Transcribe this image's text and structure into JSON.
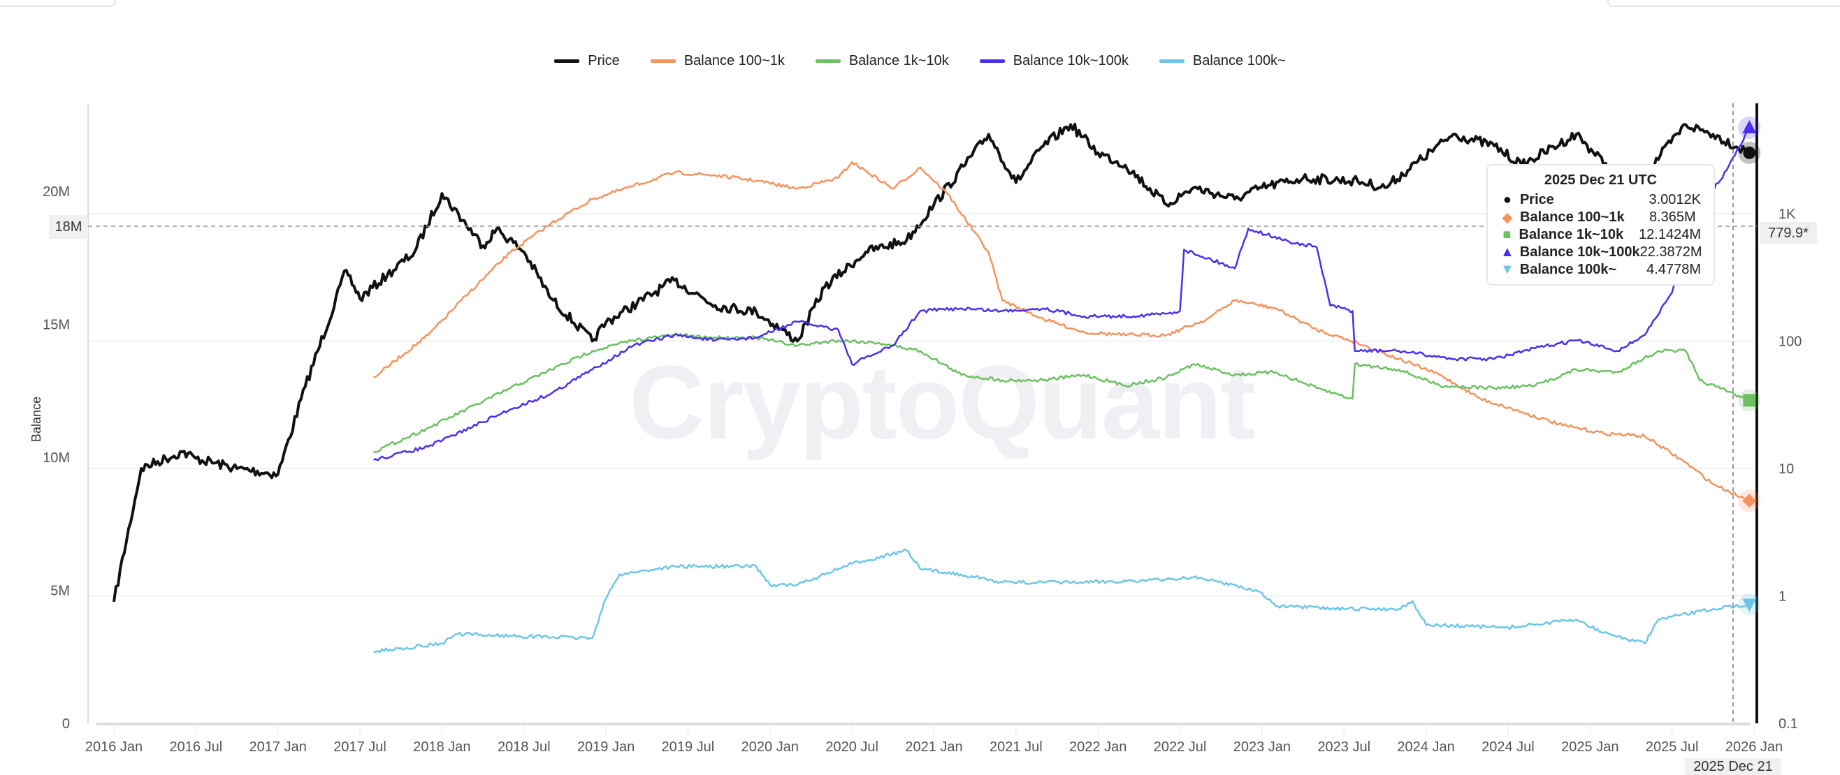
{
  "legend": [
    {
      "name": "Price",
      "color": "#111111"
    },
    {
      "name": "Balance 100~1k",
      "color": "#f4935d"
    },
    {
      "name": "Balance 1k~10k",
      "color": "#6cc062"
    },
    {
      "name": "Balance 10k~100k",
      "color": "#4a2ff0"
    },
    {
      "name": "Balance 100k~",
      "color": "#6ec6e6"
    }
  ],
  "watermark": "CryptoQuant",
  "tooltip": {
    "title": "2025 Dec 21 UTC",
    "rows": [
      {
        "marker": "●",
        "name": "Price",
        "value": "3.0012K",
        "color": "#111111"
      },
      {
        "marker": "◆",
        "name": "Balance 100~1k",
        "value": "8.365M",
        "color": "#f4935d"
      },
      {
        "marker": "■",
        "name": "Balance 1k~10k",
        "value": "12.1424M",
        "color": "#6cc062"
      },
      {
        "marker": "▲",
        "name": "Balance 10k~100k",
        "value": "22.3872M",
        "color": "#4a2ff0"
      },
      {
        "marker": "▼",
        "name": "Balance 100k~",
        "value": "4.4778M",
        "color": "#6ec6e6"
      }
    ]
  },
  "crosshair": {
    "left_value": "18M",
    "right_value": "779.9*",
    "date": "2025 Dec 21"
  },
  "chart_data": {
    "type": "line",
    "title": "",
    "xlabel": "",
    "ylabel": "Balance",
    "y_left": {
      "ticks": [
        "0",
        "5M",
        "10M",
        "15M",
        "20M"
      ],
      "tick_values": [
        0,
        5,
        10,
        15,
        20
      ],
      "unit": "M",
      "range": [
        0,
        23.5
      ]
    },
    "y_right": {
      "scale": "log",
      "ticks": [
        "0.1",
        "1",
        "10",
        "100",
        "1K"
      ],
      "tick_values": [
        0.1,
        1,
        10,
        100,
        1000
      ],
      "range": [
        0.1,
        8000
      ]
    },
    "x_ticks": [
      "2016 Jan",
      "2016 Jul",
      "2017 Jan",
      "2017 Jul",
      "2018 Jan",
      "2018 Jul",
      "2019 Jan",
      "2019 Jul",
      "2020 Jan",
      "2020 Jul",
      "2021 Jan",
      "2021 Jul",
      "2022 Jan",
      "2022 Jul",
      "2023 Jan",
      "2023 Jul",
      "2024 Jan",
      "2024 Jul",
      "2025 Jan",
      "2025 Jul",
      "2026 Jan"
    ],
    "grid": true,
    "legend_position": "top",
    "series": [
      {
        "name": "Price",
        "axis": "right",
        "color": "#111111",
        "points": [
          [
            "2016-01",
            0.9
          ],
          [
            "2016-03",
            10
          ],
          [
            "2016-06",
            13.5
          ],
          [
            "2016-07",
            12
          ],
          [
            "2016-10",
            10
          ],
          [
            "2017-01",
            9
          ],
          [
            "2017-03",
            44
          ],
          [
            "2017-06",
            360
          ],
          [
            "2017-07",
            215
          ],
          [
            "2017-09",
            330
          ],
          [
            "2017-11",
            500
          ],
          [
            "2018-01",
            1440
          ],
          [
            "2018-04",
            560
          ],
          [
            "2018-05",
            760
          ],
          [
            "2018-07",
            500
          ],
          [
            "2018-09",
            215
          ],
          [
            "2018-12",
            100
          ],
          [
            "2019-01",
            140
          ],
          [
            "2019-06",
            300
          ],
          [
            "2019-09",
            190
          ],
          [
            "2019-12",
            170
          ],
          [
            "2020-03",
            100
          ],
          [
            "2020-05",
            265
          ],
          [
            "2020-08",
            500
          ],
          [
            "2020-11",
            620
          ],
          [
            "2021-01",
            1180
          ],
          [
            "2021-05",
            4200
          ],
          [
            "2021-07",
            1750
          ],
          [
            "2021-09",
            3400
          ],
          [
            "2021-11",
            5000
          ],
          [
            "2022-01",
            3000
          ],
          [
            "2022-03",
            2400
          ],
          [
            "2022-06",
            1180
          ],
          [
            "2022-08",
            1600
          ],
          [
            "2022-11",
            1300
          ],
          [
            "2023-01",
            1600
          ],
          [
            "2023-04",
            1900
          ],
          [
            "2023-08",
            1800
          ],
          [
            "2023-10",
            1600
          ],
          [
            "2024-03",
            4200
          ],
          [
            "2024-06",
            3400
          ],
          [
            "2024-08",
            2400
          ],
          [
            "2024-12",
            4200
          ],
          [
            "2025-04",
            1500
          ],
          [
            "2025-08",
            5000
          ],
          [
            "2025-10",
            4200
          ],
          [
            "2025-12-21",
            3001.2
          ]
        ]
      },
      {
        "name": "Balance 100~1k",
        "axis": "left",
        "color": "#f4935d",
        "points": [
          [
            "2017-08",
            13.0
          ],
          [
            "2017-12",
            14.6
          ],
          [
            "2018-03",
            16.2
          ],
          [
            "2018-06",
            17.7
          ],
          [
            "2018-09",
            18.8
          ],
          [
            "2018-12",
            19.7
          ],
          [
            "2019-03",
            20.2
          ],
          [
            "2019-06",
            20.7
          ],
          [
            "2019-09",
            20.6
          ],
          [
            "2019-12",
            20.4
          ],
          [
            "2020-03",
            20.1
          ],
          [
            "2020-06",
            20.5
          ],
          [
            "2020-07",
            21.1
          ],
          [
            "2020-10",
            20.1
          ],
          [
            "2020-12",
            20.9
          ],
          [
            "2021-02",
            19.9
          ],
          [
            "2021-05",
            17.7
          ],
          [
            "2021-06",
            15.9
          ],
          [
            "2021-09",
            15.2
          ],
          [
            "2021-12",
            14.7
          ],
          [
            "2022-03",
            14.6
          ],
          [
            "2022-06",
            14.6
          ],
          [
            "2022-09",
            15.2
          ],
          [
            "2022-11",
            15.9
          ],
          [
            "2023-02",
            15.6
          ],
          [
            "2023-05",
            14.8
          ],
          [
            "2023-08",
            14.3
          ],
          [
            "2023-11",
            13.7
          ],
          [
            "2024-02",
            13.1
          ],
          [
            "2024-05",
            12.2
          ],
          [
            "2024-08",
            11.7
          ],
          [
            "2024-11",
            11.2
          ],
          [
            "2025-02",
            10.9
          ],
          [
            "2025-05",
            10.8
          ],
          [
            "2025-08",
            9.8
          ],
          [
            "2025-10",
            9.0
          ],
          [
            "2025-12-21",
            8.365
          ]
        ]
      },
      {
        "name": "Balance 1k~10k",
        "axis": "left",
        "color": "#6cc062",
        "points": [
          [
            "2017-08",
            10.2
          ],
          [
            "2017-12",
            11.1
          ],
          [
            "2018-06",
            12.6
          ],
          [
            "2018-09",
            13.3
          ],
          [
            "2018-12",
            14.0
          ],
          [
            "2019-03",
            14.4
          ],
          [
            "2019-06",
            14.6
          ],
          [
            "2019-09",
            14.5
          ],
          [
            "2019-12",
            14.5
          ],
          [
            "2020-03",
            14.2
          ],
          [
            "2020-06",
            14.4
          ],
          [
            "2020-09",
            14.3
          ],
          [
            "2020-12",
            14.0
          ],
          [
            "2021-03",
            13.1
          ],
          [
            "2021-06",
            12.9
          ],
          [
            "2021-09",
            12.9
          ],
          [
            "2021-12",
            13.1
          ],
          [
            "2022-03",
            12.7
          ],
          [
            "2022-06",
            13.0
          ],
          [
            "2022-08",
            13.5
          ],
          [
            "2022-11",
            13.1
          ],
          [
            "2023-02",
            13.2
          ],
          [
            "2023-05",
            12.6
          ],
          [
            "2023-07-20",
            12.2
          ],
          [
            "2023-07-25",
            13.5
          ],
          [
            "2023-11",
            13.3
          ],
          [
            "2024-02",
            12.7
          ],
          [
            "2024-06",
            12.6
          ],
          [
            "2024-09",
            12.7
          ],
          [
            "2024-12",
            13.3
          ],
          [
            "2025-03",
            13.2
          ],
          [
            "2025-06",
            14.0
          ],
          [
            "2025-08",
            14.0
          ],
          [
            "2025-09",
            12.9
          ],
          [
            "2025-12-21",
            12.1424
          ]
        ]
      },
      {
        "name": "Balance 10k~100k",
        "axis": "left",
        "color": "#4a2ff0",
        "points": [
          [
            "2017-08",
            9.9
          ],
          [
            "2017-12",
            10.4
          ],
          [
            "2018-06",
            11.8
          ],
          [
            "2018-09",
            12.4
          ],
          [
            "2018-12",
            13.3
          ],
          [
            "2019-03",
            14.2
          ],
          [
            "2019-06",
            14.6
          ],
          [
            "2019-09",
            14.4
          ],
          [
            "2019-12",
            14.5
          ],
          [
            "2020-03",
            15.1
          ],
          [
            "2020-06",
            14.8
          ],
          [
            "2020-07",
            13.5
          ],
          [
            "2020-10",
            14.2
          ],
          [
            "2020-12",
            15.5
          ],
          [
            "2021-03",
            15.6
          ],
          [
            "2021-06",
            15.5
          ],
          [
            "2021-09",
            15.6
          ],
          [
            "2021-12",
            15.3
          ],
          [
            "2022-03",
            15.3
          ],
          [
            "2022-06",
            15.4
          ],
          [
            "2022-07",
            15.5
          ],
          [
            "2022-07-10",
            17.8
          ],
          [
            "2022-10",
            17.3
          ],
          [
            "2022-11",
            17.1
          ],
          [
            "2022-12",
            18.6
          ],
          [
            "2023-03",
            18.1
          ],
          [
            "2023-05",
            17.9
          ],
          [
            "2023-06",
            15.7
          ],
          [
            "2023-07-20",
            15.5
          ],
          [
            "2023-07-25",
            14.0
          ],
          [
            "2023-11",
            14.0
          ],
          [
            "2024-03",
            13.7
          ],
          [
            "2024-06",
            13.7
          ],
          [
            "2024-09",
            14.1
          ],
          [
            "2024-12",
            14.4
          ],
          [
            "2025-03",
            14.0
          ],
          [
            "2025-05",
            14.6
          ],
          [
            "2025-07",
            16.2
          ],
          [
            "2025-09",
            19.3
          ],
          [
            "2025-11",
            20.8
          ],
          [
            "2025-12-21",
            22.3872
          ]
        ]
      },
      {
        "name": "Balance 100k~",
        "axis": "left",
        "color": "#6ec6e6",
        "points": [
          [
            "2017-08",
            2.7
          ],
          [
            "2018-01",
            3.0
          ],
          [
            "2018-02",
            3.35
          ],
          [
            "2018-12",
            3.2
          ],
          [
            "2019-01",
            4.7
          ],
          [
            "2019-02",
            5.6
          ],
          [
            "2019-06",
            5.9
          ],
          [
            "2019-12",
            5.9
          ],
          [
            "2020-01",
            5.2
          ],
          [
            "2020-03",
            5.2
          ],
          [
            "2020-07",
            6.0
          ],
          [
            "2020-11",
            6.5
          ],
          [
            "2020-12",
            5.8
          ],
          [
            "2021-03",
            5.6
          ],
          [
            "2021-06",
            5.3
          ],
          [
            "2021-12",
            5.3
          ],
          [
            "2022-06",
            5.4
          ],
          [
            "2022-08",
            5.5
          ],
          [
            "2022-11",
            5.2
          ],
          [
            "2023-01",
            4.9
          ],
          [
            "2023-02",
            4.4
          ],
          [
            "2023-07",
            4.3
          ],
          [
            "2023-11",
            4.3
          ],
          [
            "2023-12",
            4.6
          ],
          [
            "2024-01",
            3.7
          ],
          [
            "2024-07",
            3.6
          ],
          [
            "2024-12",
            3.9
          ],
          [
            "2025-02",
            3.4
          ],
          [
            "2025-05",
            3.0
          ],
          [
            "2025-06",
            3.9
          ],
          [
            "2025-10",
            4.3
          ],
          [
            "2025-12-21",
            4.4778
          ]
        ]
      }
    ]
  }
}
